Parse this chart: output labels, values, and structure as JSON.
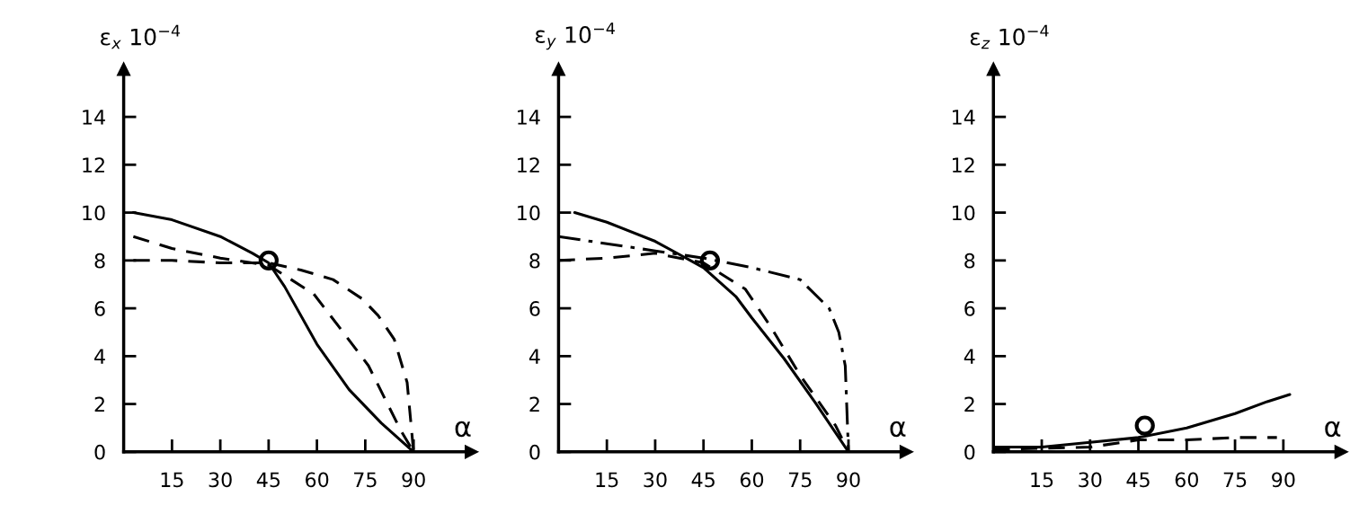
{
  "chart_data": [
    {
      "type": "line",
      "ylabel": "ε$_{x}$ 10$^{−4}$",
      "xlabel": "α",
      "xlim": [
        0,
        108
      ],
      "ylim": [
        0,
        16
      ],
      "xticks": [
        15,
        30,
        45,
        60,
        75,
        90
      ],
      "yticks": [
        0,
        2,
        4,
        6,
        8,
        10,
        12,
        14
      ],
      "grid": false,
      "legend": false,
      "series": [
        {
          "color": "#000000",
          "line_style": "solid",
          "x": [
            3,
            15,
            30,
            40,
            45,
            50,
            60,
            70,
            80,
            90
          ],
          "values": [
            10,
            9.7,
            9.0,
            8.3,
            7.9,
            6.9,
            4.5,
            2.6,
            1.2,
            0
          ]
        },
        {
          "color": "#000000",
          "line_style": "dashed",
          "x": [
            3,
            15,
            30,
            45,
            52,
            59,
            67,
            76,
            86,
            90
          ],
          "values": [
            9.0,
            8.5,
            8.1,
            7.8,
            7.2,
            6.6,
            5.2,
            3.6,
            0.9,
            0
          ]
        },
        {
          "color": "#000000",
          "line_style": "dashed",
          "x": [
            3,
            15,
            30,
            45,
            55,
            65,
            74,
            79,
            84,
            88,
            90
          ],
          "values": [
            8.0,
            8.0,
            7.9,
            7.9,
            7.6,
            7.2,
            6.4,
            5.7,
            4.7,
            2.9,
            0
          ]
        },
        {
          "type": "scatter",
          "color": "#000000",
          "marker": "circle",
          "x": [
            45
          ],
          "values": [
            8.0
          ]
        }
      ]
    },
    {
      "type": "line",
      "ylabel": "ε$_{y}$ 10$^{−4}$",
      "xlabel": "α",
      "xlim": [
        0,
        108
      ],
      "ylim": [
        0,
        16
      ],
      "xticks": [
        15,
        30,
        45,
        60,
        75,
        90
      ],
      "yticks": [
        0,
        2,
        4,
        6,
        8,
        10,
        12,
        14
      ],
      "grid": false,
      "legend": false,
      "series": [
        {
          "color": "#000000",
          "line_style": "solid",
          "x": [
            5,
            15,
            30,
            45,
            55,
            60,
            70,
            80,
            90
          ],
          "values": [
            10,
            9.6,
            8.8,
            7.7,
            6.5,
            5.6,
            3.9,
            2.0,
            0
          ]
        },
        {
          "color": "#000000",
          "line_style": "dashed",
          "x": [
            0,
            15,
            30,
            45,
            58,
            66,
            75,
            86,
            90
          ],
          "values": [
            8.0,
            8.1,
            8.3,
            7.9,
            6.8,
            5.2,
            3.2,
            1.1,
            0
          ]
        },
        {
          "color": "#000000",
          "line_style": "dashdot",
          "x": [
            0,
            15,
            30,
            45,
            60,
            75,
            84,
            87,
            89,
            90
          ],
          "values": [
            9.0,
            8.7,
            8.4,
            8.1,
            7.7,
            7.2,
            6.0,
            5.0,
            3.6,
            0
          ]
        },
        {
          "type": "scatter",
          "color": "#000000",
          "marker": "circle",
          "x": [
            47
          ],
          "values": [
            8.0
          ]
        }
      ]
    },
    {
      "type": "line",
      "ylabel": "ε$_{z}$ 10$^{−4}$",
      "xlabel": "α",
      "xlim": [
        0,
        108
      ],
      "ylim": [
        0,
        16
      ],
      "xticks": [
        15,
        30,
        45,
        60,
        75,
        90
      ],
      "yticks": [
        0,
        2,
        4,
        6,
        8,
        10,
        12,
        14
      ],
      "grid": false,
      "legend": false,
      "series": [
        {
          "color": "#000000",
          "line_style": "solid",
          "x": [
            0,
            15,
            30,
            45,
            60,
            75,
            85,
            92
          ],
          "values": [
            0.2,
            0.2,
            0.4,
            0.6,
            1.0,
            1.6,
            2.1,
            2.4
          ]
        },
        {
          "color": "#000000",
          "line_style": "dashed",
          "x": [
            0,
            30,
            45,
            60,
            75,
            88
          ],
          "values": [
            0.1,
            0.2,
            0.5,
            0.5,
            0.6,
            0.6
          ]
        },
        {
          "type": "scatter",
          "color": "#000000",
          "marker": "circle",
          "x": [
            47
          ],
          "values": [
            1.1
          ]
        }
      ]
    }
  ]
}
